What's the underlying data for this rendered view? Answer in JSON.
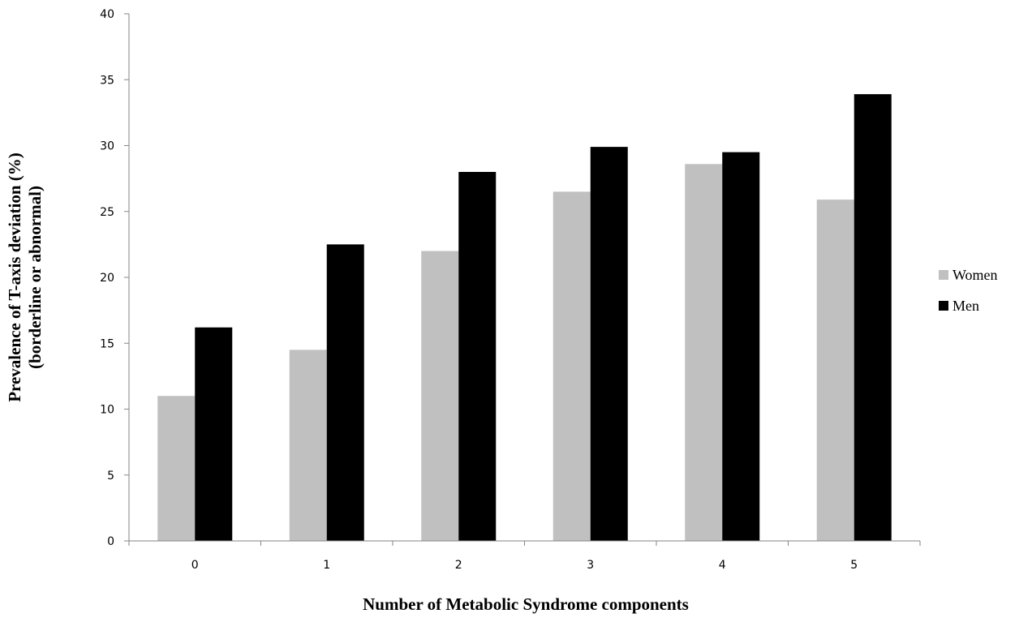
{
  "chart_data": {
    "type": "bar",
    "categories": [
      "0",
      "1",
      "2",
      "3",
      "4",
      "5"
    ],
    "series": [
      {
        "name": "Women",
        "color": "#c0c0c0",
        "values": [
          11.0,
          14.5,
          22.0,
          26.5,
          28.6,
          25.9
        ]
      },
      {
        "name": "Men",
        "color": "#000000",
        "values": [
          16.2,
          22.5,
          28.0,
          29.9,
          29.5,
          33.9
        ]
      }
    ],
    "xlabel": "Number of Metabolic  Syndrome components",
    "ylabel": [
      "Prevalence of T-axis deviation (%)",
      "(borderline or abnormal)"
    ],
    "ylim": [
      0,
      40
    ],
    "yticks": [
      "0",
      "5",
      "10",
      "15",
      "20",
      "25",
      "30",
      "35",
      "40"
    ],
    "grid": false,
    "legend": "right"
  }
}
